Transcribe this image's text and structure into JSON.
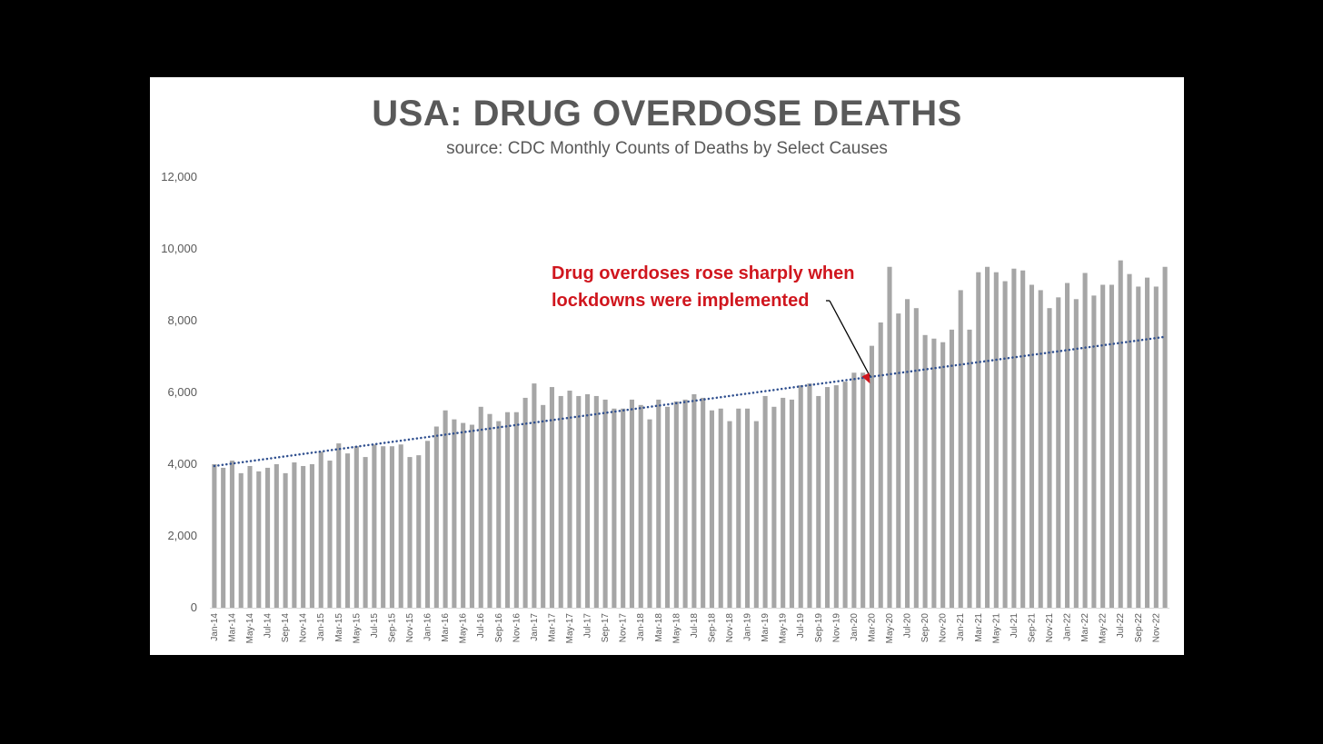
{
  "chart_data": {
    "type": "bar",
    "title": "USA: DRUG OVERDOSE DEATHS",
    "subtitle": "source: CDC Monthly Counts of Deaths by Select Causes",
    "xlabel": "",
    "ylabel": "",
    "ylim": [
      0,
      12000
    ],
    "yticks": [
      0,
      2000,
      4000,
      6000,
      8000,
      10000,
      12000
    ],
    "ytick_labels": [
      "0",
      "2,000",
      "4,000",
      "6,000",
      "8,000",
      "10,000",
      "12,000"
    ],
    "grid": false,
    "legend": "none",
    "categories": [
      "Jan-14",
      "Feb-14",
      "Mar-14",
      "Apr-14",
      "May-14",
      "Jun-14",
      "Jul-14",
      "Aug-14",
      "Sep-14",
      "Oct-14",
      "Nov-14",
      "Dec-14",
      "Jan-15",
      "Feb-15",
      "Mar-15",
      "Apr-15",
      "May-15",
      "Jun-15",
      "Jul-15",
      "Aug-15",
      "Sep-15",
      "Oct-15",
      "Nov-15",
      "Dec-15",
      "Jan-16",
      "Feb-16",
      "Mar-16",
      "Apr-16",
      "May-16",
      "Jun-16",
      "Jul-16",
      "Aug-16",
      "Sep-16",
      "Oct-16",
      "Nov-16",
      "Dec-16",
      "Jan-17",
      "Feb-17",
      "Mar-17",
      "Apr-17",
      "May-17",
      "Jun-17",
      "Jul-17",
      "Aug-17",
      "Sep-17",
      "Oct-17",
      "Nov-17",
      "Dec-17",
      "Jan-18",
      "Feb-18",
      "Mar-18",
      "Apr-18",
      "May-18",
      "Jun-18",
      "Jul-18",
      "Aug-18",
      "Sep-18",
      "Oct-18",
      "Nov-18",
      "Dec-18",
      "Jan-19",
      "Feb-19",
      "Mar-19",
      "Apr-19",
      "May-19",
      "Jun-19",
      "Jul-19",
      "Aug-19",
      "Sep-19",
      "Oct-19",
      "Nov-19",
      "Dec-19",
      "Jan-20",
      "Feb-20",
      "Mar-20",
      "Apr-20",
      "May-20",
      "Jun-20",
      "Jul-20",
      "Aug-20",
      "Sep-20",
      "Oct-20",
      "Nov-20",
      "Dec-20",
      "Jan-21",
      "Feb-21",
      "Mar-21",
      "Apr-21",
      "May-21",
      "Jun-21",
      "Jul-21",
      "Aug-21",
      "Sep-21",
      "Oct-21",
      "Nov-21",
      "Dec-21",
      "Jan-22",
      "Feb-22",
      "Mar-22",
      "Apr-22",
      "May-22",
      "Jun-22",
      "Jul-22",
      "Aug-22",
      "Sep-22",
      "Oct-22",
      "Nov-22",
      "Dec-22"
    ],
    "xtick_labels_shown": [
      "Jan-14",
      "Mar-14",
      "May-14",
      "Jul-14",
      "Sep-14",
      "Nov-14",
      "Jan-15",
      "Mar-15",
      "May-15",
      "Jul-15",
      "Sep-15",
      "Nov-15",
      "Jan-16",
      "Mar-16",
      "May-16",
      "Jul-16",
      "Sep-16",
      "Nov-16",
      "Jan-17",
      "Mar-17",
      "May-17",
      "Jul-17",
      "Sep-17",
      "Nov-17",
      "Jan-18",
      "Mar-18",
      "May-18",
      "Jul-18",
      "Sep-18",
      "Nov-18",
      "Jan-19",
      "Mar-19",
      "May-19",
      "Jul-19",
      "Sep-19",
      "Nov-19",
      "Jan-20",
      "Mar-20",
      "May-20",
      "Jul-20",
      "Sep-20",
      "Nov-20",
      "Jan-21",
      "Mar-21",
      "May-21",
      "Jul-21",
      "Sep-21",
      "Nov-21",
      "Jan-22",
      "Mar-22",
      "May-22",
      "Jul-22",
      "Sep-22",
      "Nov-22"
    ],
    "values": [
      4000,
      3900,
      4100,
      3750,
      3950,
      3800,
      3900,
      4000,
      3750,
      4050,
      3950,
      4000,
      4350,
      4100,
      4580,
      4300,
      4500,
      4200,
      4550,
      4500,
      4500,
      4550,
      4200,
      4250,
      4650,
      5050,
      5500,
      5250,
      5150,
      5100,
      5600,
      5400,
      5200,
      5450,
      5450,
      5850,
      6250,
      5650,
      6150,
      5900,
      6050,
      5900,
      5950,
      5900,
      5800,
      5550,
      5550,
      5800,
      5650,
      5250,
      5800,
      5600,
      5750,
      5800,
      5950,
      5850,
      5500,
      5550,
      5200,
      5550,
      5550,
      5200,
      5900,
      5600,
      5850,
      5800,
      6200,
      6250,
      5900,
      6150,
      6200,
      6300,
      6550,
      6550,
      7300,
      7950,
      9500,
      8200,
      8600,
      8350,
      7600,
      7500,
      7400,
      7750,
      8850,
      7750,
      9350,
      9500,
      9350,
      9100,
      9450,
      9400,
      9000,
      8850,
      8350,
      8650,
      9050,
      8600,
      9330,
      8700,
      9000,
      9000,
      9680,
      9300,
      8950,
      9200,
      8950,
      9500
    ],
    "trendline": {
      "style": "dotted",
      "color": "#2f4f8f",
      "start_value": 3950,
      "end_value": 7550
    },
    "annotation": {
      "lines": [
        "Drug overdoses rose sharply when",
        "lockdowns were implemented"
      ],
      "points_to": "Mar-20"
    },
    "colors": {
      "bar": "#a6a6a6",
      "annotation": "#d0161e",
      "trend": "#2f4f8f",
      "text": "#595959"
    }
  }
}
